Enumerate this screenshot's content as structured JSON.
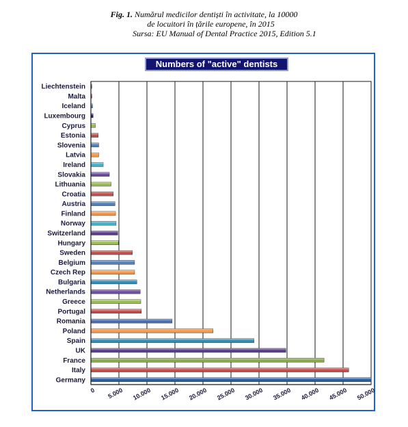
{
  "figure": {
    "caption_label": "Fig. 1.",
    "caption_line1": " Numărul medicilor dentiști în activitate, la 10000",
    "caption_line2": "de locuitori în țările europene, în 2015",
    "caption_line3": "Sursa: EU Manual of Dental Practice 2015, Edition 5.1"
  },
  "colors": {
    "frame_border": "#1c62c9",
    "title_bg": "#14146e",
    "plot_bg": "#ffffff"
  },
  "chart_data": {
    "type": "bar",
    "orientation": "horizontal",
    "title": "Numbers of \"active\" dentists",
    "xlabel": "",
    "ylabel": "",
    "xlim": [
      0,
      50000
    ],
    "grid": true,
    "x_ticks": [
      "0",
      "5.000",
      "10.000",
      "15.000",
      "20.000",
      "25.000",
      "30.000",
      "35.000",
      "40.000",
      "45.000",
      "50.000"
    ],
    "categories": [
      "Liechtenstein",
      "Malta",
      "Iceland",
      "Luxembourg",
      "Cyprus",
      "Estonia",
      "Slovenia",
      "Latvia",
      "Ireland",
      "Slovakia",
      "Lithuania",
      "Croatia",
      "Austria",
      "Finland",
      "Norway",
      "Switzerland",
      "Hungary",
      "Sweden",
      "Belgium",
      "Czech Rep",
      "Bulgaria",
      "Netherlands",
      "Greece",
      "Portugal",
      "Romania",
      "Poland",
      "Spain",
      "UK",
      "France",
      "Italy",
      "Germany"
    ],
    "values": [
      50,
      150,
      300,
      400,
      800,
      1300,
      1400,
      1400,
      2200,
      3300,
      3600,
      4000,
      4300,
      4400,
      4500,
      4800,
      4900,
      7400,
      7800,
      7800,
      8200,
      8800,
      8900,
      9000,
      14500,
      21800,
      29100,
      34800,
      41600,
      46000,
      50000
    ],
    "bar_colors": [
      "#5aa84a",
      "#c0504d",
      "#4f81bd",
      "#1f1f7a",
      "#9bbb59",
      "#c0504d",
      "#4f81bd",
      "#f79646",
      "#4bacc6",
      "#6b4f9e",
      "#9bbb59",
      "#c0504d",
      "#4f81bd",
      "#f79646",
      "#4bacc6",
      "#5b3f8e",
      "#9bbb59",
      "#c0504d",
      "#4f81bd",
      "#f79646",
      "#2f8fb8",
      "#6b4f9e",
      "#9bbb59",
      "#c0504d",
      "#4a6fb0",
      "#f79646",
      "#2f8fb8",
      "#5b3f8e",
      "#8aa850",
      "#c0504d",
      "#2b5f9e"
    ]
  }
}
